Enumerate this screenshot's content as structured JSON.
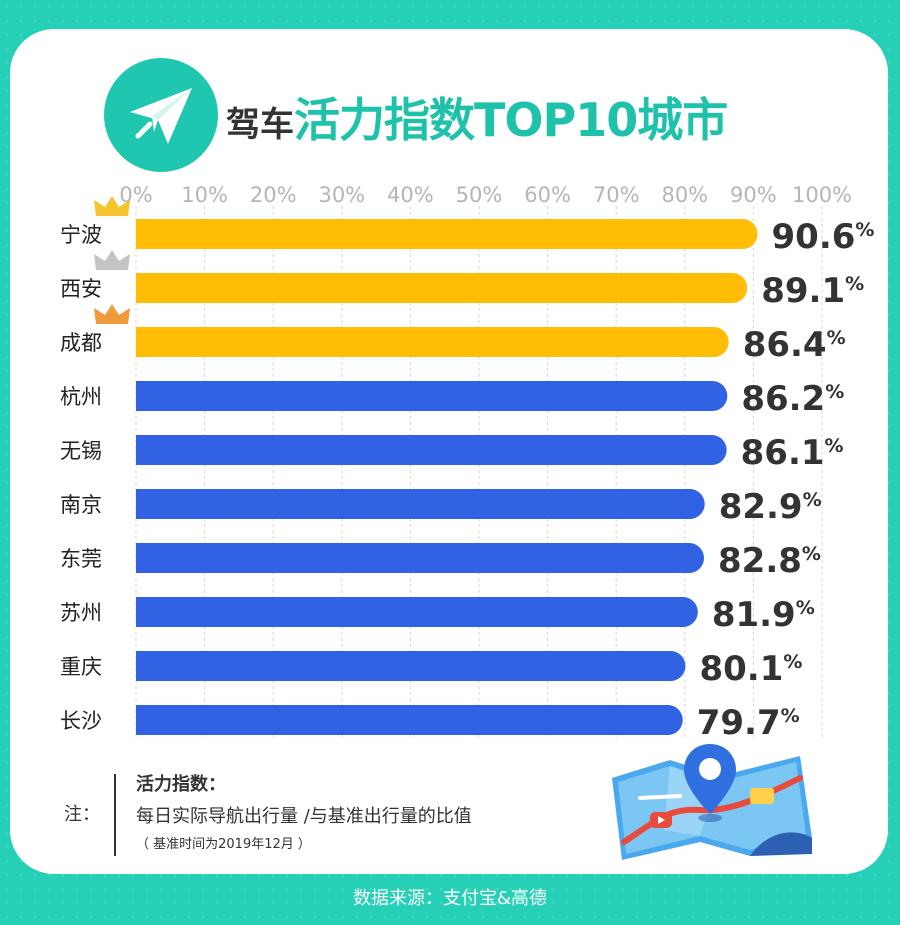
{
  "header": {
    "title_prefix": "驾车",
    "title_main": "活力指数TOP10城市",
    "logo_icon": "paper-plane-icon"
  },
  "colors": {
    "background": "#25d0b6",
    "accent": "#1ec2ab",
    "top3_bar": "#ffbd06",
    "other_bar": "#3162e3",
    "crown_gold": "#f5c32c",
    "crown_silver": "#c4c4c4",
    "crown_bronze": "#f09a3e"
  },
  "chart_data": {
    "type": "bar",
    "orientation": "horizontal",
    "title": "驾车活力指数TOP10城市",
    "categories": [
      "宁波",
      "西安",
      "成都",
      "杭州",
      "无锡",
      "南京",
      "东莞",
      "苏州",
      "重庆",
      "长沙"
    ],
    "values": [
      90.6,
      89.1,
      86.4,
      86.2,
      86.1,
      82.9,
      82.8,
      81.9,
      80.1,
      79.7
    ],
    "value_suffix": "%",
    "ticks": [
      "0%",
      "10%",
      "20%",
      "30%",
      "40%",
      "50%",
      "60%",
      "70%",
      "80%",
      "90%",
      "100%"
    ],
    "xlim": [
      0,
      100
    ],
    "grid": true,
    "axis_position": "top",
    "highlight_top": 3,
    "crowns": [
      "gold",
      "silver",
      "bronze"
    ]
  },
  "note": {
    "label": "注：",
    "title": "活力指数：",
    "body": "每日实际导航出行量 /与基准出行量的比值",
    "small": "（ 基准时间为2019年12月 ）"
  },
  "footer": {
    "source": "数据来源：支付宝&高德"
  },
  "illustration": {
    "icon": "map-pin-icon"
  }
}
